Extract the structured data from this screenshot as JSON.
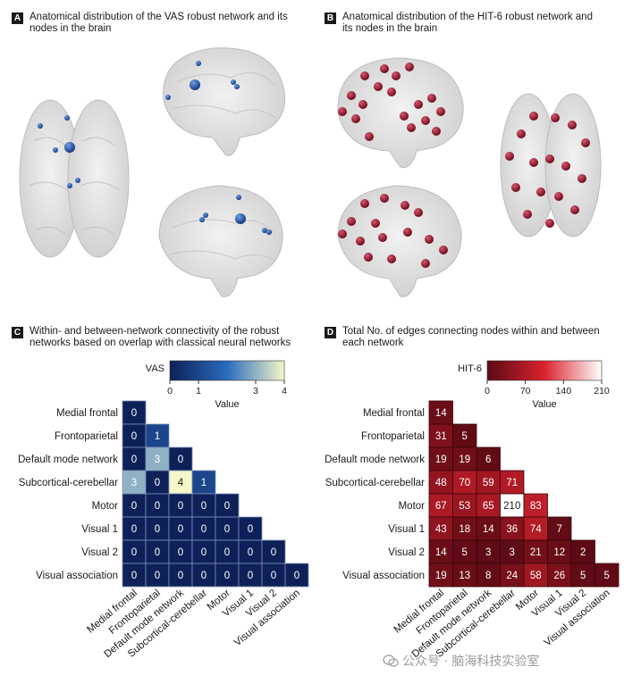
{
  "panels": {
    "a": {
      "letter": "A",
      "title_line1": "Anatomical distribution of the VAS robust network and its",
      "title_line2": "nodes in the brain"
    },
    "b": {
      "letter": "B",
      "title_line1": "Anatomical distribution of the HIT-6 robust network and",
      "title_line2": "its nodes in the brain"
    },
    "c": {
      "letter": "C",
      "title_line1": "Within- and between-network connectivity of the robust",
      "title_line2": "networks based on overlap with classical neural networks"
    },
    "d": {
      "letter": "D",
      "title_line1": "Total No. of edges connecting nodes within and between",
      "title_line2": "each network"
    }
  },
  "watermark": {
    "text": "公众号 · 脑海科技实验室"
  },
  "chart_data": [
    {
      "type": "heatmap",
      "title": "VAS",
      "colorbar_label": "Value",
      "colorbar_ticks": [
        0,
        1,
        3,
        4
      ],
      "range": [
        0,
        4
      ],
      "colors": {
        "low": "#0d2158",
        "mid": "#2a6bbd",
        "high": "#f5f7c8"
      },
      "rows": [
        "Medial frontal",
        "Frontoparietal",
        "Default mode network",
        "Subcortical-cerebellar",
        "Motor",
        "Visual 1",
        "Visual 2",
        "Visual association"
      ],
      "cols": [
        "Medial frontal",
        "Frontoparietal",
        "Default mode network",
        "Subcortical-cerebellar",
        "Motor",
        "Visual 1",
        "Visual 2",
        "Visual association"
      ],
      "values": [
        [
          0
        ],
        [
          0,
          1
        ],
        [
          0,
          3,
          0
        ],
        [
          3,
          0,
          4,
          1
        ],
        [
          0,
          0,
          0,
          0,
          0
        ],
        [
          0,
          0,
          0,
          0,
          0,
          0
        ],
        [
          0,
          0,
          0,
          0,
          0,
          0,
          0
        ],
        [
          0,
          0,
          0,
          0,
          0,
          0,
          0,
          0
        ]
      ]
    },
    {
      "type": "heatmap",
      "title": "HIT-6",
      "colorbar_label": "Value",
      "colorbar_ticks": [
        0,
        70,
        140,
        210
      ],
      "range": [
        0,
        210
      ],
      "colors": {
        "low": "#5a0a14",
        "mid": "#d9232e",
        "high": "#ffffff"
      },
      "rows": [
        "Medial frontal",
        "Frontoparietal",
        "Default mode network",
        "Subcortical-cerebellar",
        "Motor",
        "Visual 1",
        "Visual 2",
        "Visual association"
      ],
      "cols": [
        "Medial frontal",
        "Frontoparietal",
        "Default mode network",
        "Subcortical-cerebellar",
        "Motor",
        "Visual 1",
        "Visual 2",
        "Visual association"
      ],
      "values": [
        [
          14
        ],
        [
          31,
          5
        ],
        [
          19,
          19,
          6
        ],
        [
          48,
          70,
          59,
          71
        ],
        [
          67,
          53,
          65,
          210,
          83
        ],
        [
          43,
          18,
          14,
          36,
          74,
          7
        ],
        [
          14,
          5,
          3,
          3,
          21,
          12,
          2
        ],
        [
          19,
          13,
          8,
          24,
          58,
          26,
          5,
          5
        ]
      ]
    }
  ]
}
